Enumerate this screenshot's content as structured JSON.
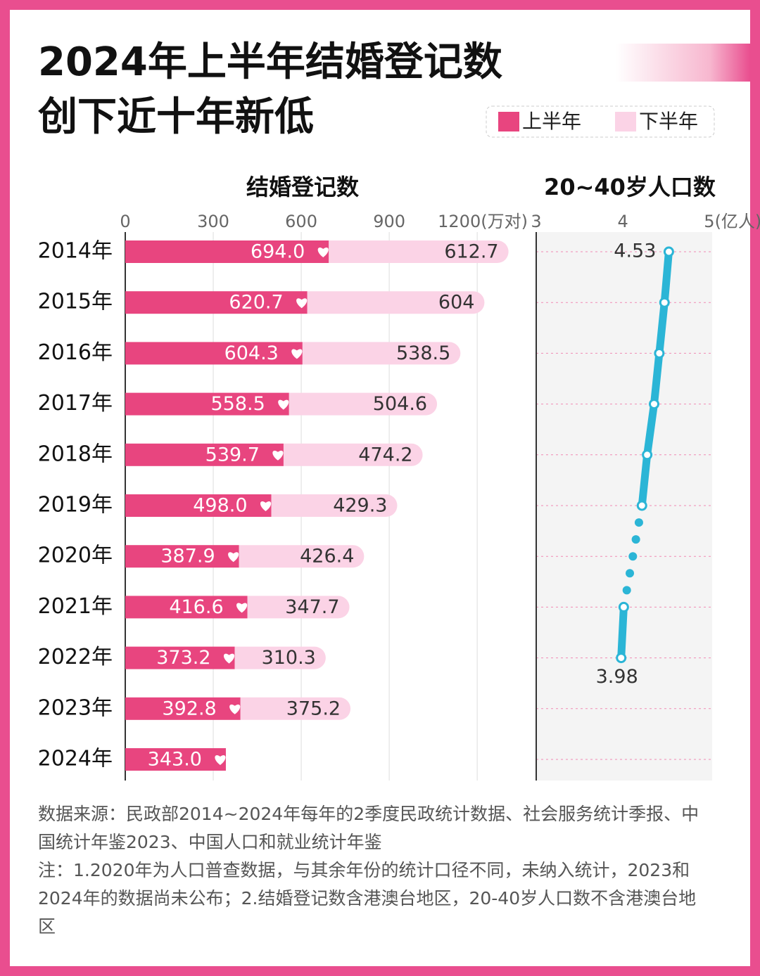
{
  "header": {
    "title_lines": [
      "2024年上半年结婚登记数",
      "创下近十年新低"
    ]
  },
  "chart_data": [
    {
      "type": "stacked-bar",
      "title": "结婚登记数",
      "categories": [
        "2014年",
        "2015年",
        "2016年",
        "2017年",
        "2018年",
        "2019年",
        "2020年",
        "2021年",
        "2022年",
        "2023年",
        "2024年"
      ],
      "series": [
        {
          "name": "上半年",
          "color": "#e8457f",
          "values": [
            694.0,
            620.7,
            604.3,
            558.5,
            539.7,
            498.0,
            387.9,
            416.6,
            373.2,
            392.8,
            343.0
          ],
          "value_labels": [
            "694.0",
            "620.7",
            "604.3",
            "558.5",
            "539.7",
            "498.0",
            "387.9",
            "416.6",
            "373.2",
            "392.8",
            "343.0"
          ]
        },
        {
          "name": "下半年",
          "color": "#fbd3e6",
          "values": [
            612.7,
            604.0,
            538.5,
            504.6,
            474.2,
            429.3,
            426.4,
            347.7,
            310.3,
            375.2,
            null
          ]
        }
      ],
      "xlim": [
        0,
        1370
      ],
      "xticks": [
        0,
        300,
        600,
        900,
        {
          "value": 1200,
          "label": "1200(万对)"
        }
      ],
      "grid": true,
      "legend": "top-right"
    },
    {
      "type": "line",
      "title": "20~40岁人口数",
      "color": "#2bb5d6",
      "categories": [
        "2014年",
        "2015年",
        "2016年",
        "2017年",
        "2018年",
        "2019年",
        "2020年",
        "2021年",
        "2022年",
        "2023年",
        "2024年"
      ],
      "values": [
        4.53,
        4.48,
        4.42,
        4.36,
        4.28,
        4.22,
        null,
        4.01,
        3.98,
        null,
        null
      ],
      "value_labels": [
        "4.53",
        null,
        null,
        null,
        null,
        null,
        null,
        null,
        "3.98",
        null,
        null
      ],
      "xlim": [
        3,
        5.03
      ],
      "xticks": [
        3,
        4,
        {
          "value": 5,
          "label": "5(亿人)"
        }
      ]
    }
  ],
  "footer": {
    "notes": [
      "数据来源：民政部2014~2024年每年的2季度民政统计数据、社会服务统计季报、中国统计年鉴2023、中国人口和就业统计年鉴",
      "注：1.2020年为人口普查数据，与其余年份的统计口径不同，未纳入统计，2023和2024年的数据尚未公布；2.结婚登记数含港澳台地区，20-40岁人口数不含港澳台地区"
    ]
  }
}
